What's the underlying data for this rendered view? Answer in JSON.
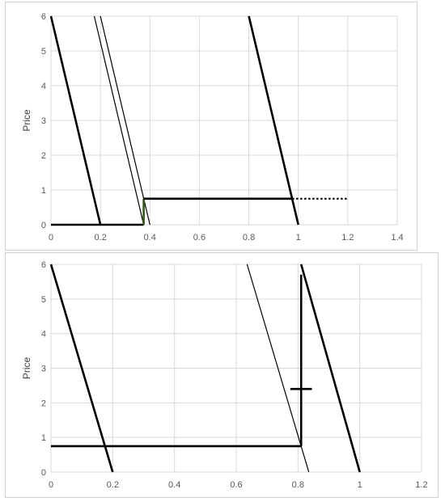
{
  "chart_data": [
    {
      "type": "line",
      "ylabel": "Price",
      "xlim": [
        0,
        1.4
      ],
      "ylim": [
        0,
        6
      ],
      "xticks": [
        "0",
        "0.2",
        "0.4",
        "0.6",
        "0.8",
        "1",
        "1.2",
        "1.4"
      ],
      "yticks": [
        "0",
        "1",
        "2",
        "3",
        "4",
        "5",
        "6"
      ],
      "grid": true,
      "series": [
        {
          "style": "thick",
          "color": "#000000",
          "points": [
            [
              0,
              6
            ],
            [
              0.2,
              0
            ]
          ]
        },
        {
          "style": "thin",
          "color": "#000000",
          "points": [
            [
              0.175,
              6
            ],
            [
              0.375,
              0
            ]
          ]
        },
        {
          "style": "thin",
          "color": "#000000",
          "points": [
            [
              0.2,
              6
            ],
            [
              0.4,
              0
            ]
          ]
        },
        {
          "style": "thick",
          "color": "#000000",
          "points": [
            [
              0.8,
              6
            ],
            [
              1.0,
              0
            ]
          ]
        },
        {
          "style": "thick",
          "color": "#000000",
          "points": [
            [
              0,
              0
            ],
            [
              0.375,
              0
            ]
          ]
        },
        {
          "style": "thick",
          "color": "#375623",
          "points": [
            [
              0.375,
              0
            ],
            [
              0.375,
              0.75
            ]
          ]
        },
        {
          "style": "thick",
          "color": "#000000",
          "points": [
            [
              0.375,
              0.75
            ],
            [
              0.975,
              0.75
            ]
          ]
        },
        {
          "style": "dotted",
          "color": "#000000",
          "points": [
            [
              0.975,
              0.75
            ],
            [
              1.2,
              0.75
            ]
          ]
        }
      ]
    },
    {
      "type": "line",
      "ylabel": "Price",
      "xlim": [
        0,
        1.2
      ],
      "ylim": [
        0,
        6
      ],
      "xticks": [
        "0",
        "0.2",
        "0.4",
        "0.6",
        "0.8",
        "1",
        "1.2"
      ],
      "yticks": [
        "0",
        "1",
        "2",
        "3",
        "4",
        "5",
        "6"
      ],
      "grid": true,
      "series": [
        {
          "style": "thick",
          "color": "#000000",
          "points": [
            [
              0,
              6
            ],
            [
              0.2,
              0
            ]
          ]
        },
        {
          "style": "thin",
          "color": "#000000",
          "points": [
            [
              0.635,
              6
            ],
            [
              0.835,
              0
            ]
          ]
        },
        {
          "style": "thick",
          "color": "#000000",
          "points": [
            [
              0.81,
              6
            ],
            [
              1.0,
              0
            ]
          ]
        },
        {
          "style": "thick",
          "color": "#000000",
          "points": [
            [
              0.81,
              0.75
            ],
            [
              0.81,
              5.7
            ]
          ]
        },
        {
          "style": "thick",
          "color": "#000000",
          "points": [
            [
              0,
              0.75
            ],
            [
              0.81,
              0.75
            ]
          ]
        },
        {
          "style": "thick",
          "color": "#000000",
          "points": [
            [
              0.775,
              2.4
            ],
            [
              0.845,
              2.4
            ]
          ]
        }
      ]
    }
  ]
}
